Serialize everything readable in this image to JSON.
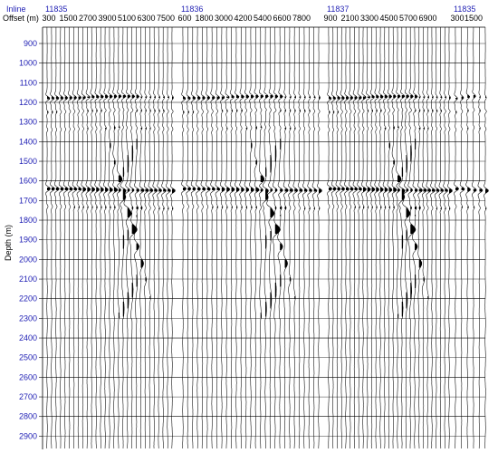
{
  "chart_data": {
    "type": "seismic-wiggle",
    "header_labels": {
      "inline": "Inline",
      "offset": "Offset (m)"
    },
    "ylabel": "Depth (m)",
    "y_ticks": [
      900,
      1000,
      1100,
      1200,
      1300,
      1400,
      1500,
      1600,
      1700,
      1800,
      1900,
      2000,
      2100,
      2200,
      2300,
      2400,
      2500,
      2600,
      2700,
      2800,
      2900
    ],
    "ylim": [
      850,
      2900
    ],
    "gathers": [
      {
        "inline": "11835",
        "offset_ticks": [
          "300",
          "1500",
          "2700",
          "3900",
          "5100",
          "6300",
          "7500"
        ],
        "trace_count": 29
      },
      {
        "inline": "11836",
        "offset_ticks": [
          "600",
          "1800",
          "3000",
          "4200",
          "5400",
          "6600",
          "7800"
        ],
        "trace_count": 29
      },
      {
        "inline": "11837",
        "offset_ticks": [
          "900",
          "2100",
          "3300",
          "4500",
          "5700",
          "6900"
        ],
        "trace_count": 29
      },
      {
        "inline": "11835",
        "offset_ticks": [
          "300",
          "1500"
        ],
        "trace_count": 6
      }
    ],
    "events_depth_m": [
      1180,
      1640
    ],
    "colors": {
      "label": "#1f1fb4",
      "trace": "#000000",
      "grid": "#000000"
    }
  }
}
